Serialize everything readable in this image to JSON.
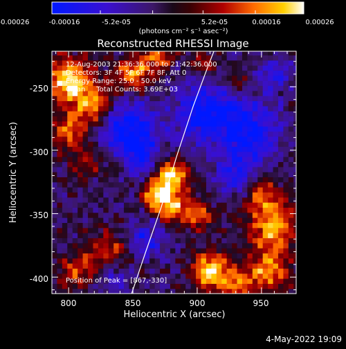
{
  "chart_data": {
    "type": "heatmap",
    "title": "Reconstructed RHESSI Image",
    "xlabel": "Heliocentric X (arcsec)",
    "ylabel": "Heliocentric Y (arcsec)",
    "xlim": [
      787,
      977
    ],
    "ylim": [
      -413,
      -222
    ],
    "x_ticks": [
      800,
      850,
      900,
      950
    ],
    "y_ticks": [
      -400,
      -350,
      -300,
      -250
    ],
    "x_tick_labels": [
      "800",
      "850",
      "900",
      "950"
    ],
    "y_tick_labels": [
      "-400",
      "-350",
      "-300",
      "-250"
    ],
    "colorbar": {
      "range": [
        -0.00026,
        0.00026
      ],
      "ticks": [
        -0.00026,
        -0.00016,
        -5.2e-05,
        5.2e-05,
        0.00016,
        0.00026
      ],
      "tick_labels": [
        "-0.00026",
        "-0.00016",
        "-5.2e-05",
        "5.2e-05",
        "0.00016",
        "0.00026"
      ],
      "unit_label": "(photons cm⁻² s⁻¹ asec⁻²)"
    },
    "annotations": {
      "time": "12-Aug-2003 21:36:36.000 to 21:42:36.000",
      "detectors": "Detectors: 3F 4F 5F 6F 7F 8F, Att 0",
      "energy": "Energy Range: 25.0 - 50.0 keV",
      "algorithm": "Clean     Total Counts: 3.69E+03",
      "peak": "Position of Peak = [867,-330]"
    },
    "peak": [
      867,
      -330
    ],
    "limb": [
      [
        849,
        -413
      ],
      [
        860,
        -380
      ],
      [
        872,
        -345
      ],
      [
        884,
        -305
      ],
      [
        897,
        -265
      ],
      [
        908,
        -235
      ],
      [
        913,
        -222
      ]
    ],
    "grid": false
  },
  "footer": {
    "date": "4-May-2022 19:09"
  },
  "colors": {
    "background": "#000000",
    "text": "#ffffff",
    "limb": "#ffffff"
  }
}
